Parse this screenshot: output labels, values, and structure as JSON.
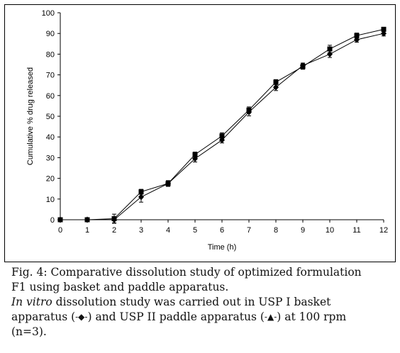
{
  "chart_data": {
    "type": "line",
    "xlabel": "Time (h)",
    "ylabel": "Cumulative % drug released",
    "xlim": [
      0,
      12
    ],
    "ylim": [
      0,
      100
    ],
    "x_ticks": [
      "0",
      "1",
      "2",
      "3",
      "4",
      "5",
      "6",
      "7",
      "8",
      "9",
      "10",
      "11",
      "12"
    ],
    "y_ticks": [
      "0",
      "10",
      "20",
      "30",
      "40",
      "50",
      "60",
      "70",
      "80",
      "90",
      "100"
    ],
    "grid": false,
    "legend": "none",
    "x": [
      0,
      1,
      2,
      3,
      4,
      5,
      6,
      7,
      8,
      9,
      10,
      11,
      12
    ],
    "series": [
      {
        "marker": "square",
        "values": [
          0,
          0,
          0.5,
          13.5,
          17.5,
          31.5,
          40.5,
          53,
          66.5,
          74,
          82.5,
          89,
          92
        ],
        "errors": [
          0,
          0.8,
          2.2,
          1.2,
          1.2,
          1.2,
          1.5,
          1.5,
          1.2,
          1.3,
          1.8,
          1.2,
          1
        ]
      },
      {
        "marker": "diamond",
        "values": [
          0,
          0,
          0,
          11,
          17.5,
          29.5,
          38.5,
          52,
          64,
          74.5,
          80,
          87,
          90
        ],
        "errors": [
          0,
          0.8,
          1.5,
          2.5,
          1.4,
          1.6,
          1.4,
          1.8,
          1.6,
          1.2,
          1.6,
          1.2,
          1.2
        ]
      }
    ]
  },
  "caption": {
    "line1": "Fig. 4: Comparative dissolution study of optimized formulation",
    "line2": "F1 using basket and paddle apparatus.",
    "line3_italic": "In vitro",
    "line3_rest": " dissolution study was carried out in USP I basket",
    "line4_a": "apparatus (",
    "line4_sym1": "-◆-",
    "line4_b": ") and USP II paddle apparatus (",
    "line4_sym2": "-▲-",
    "line4_c": ") at 100 rpm",
    "line5": "(n=3)."
  }
}
